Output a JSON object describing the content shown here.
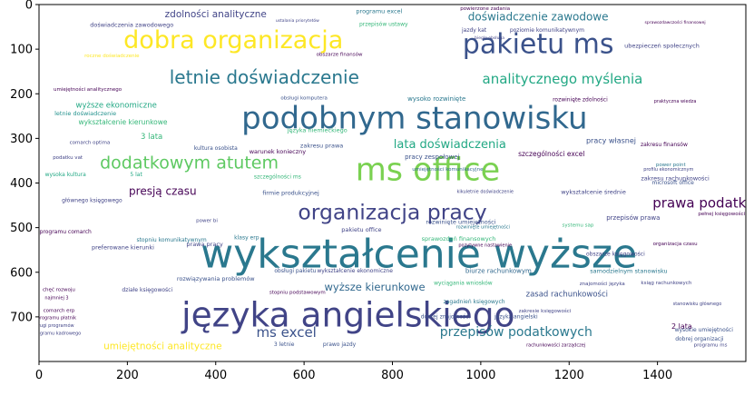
{
  "chart_data": {
    "type": "wordcloud",
    "title": "",
    "xlabel": "",
    "ylabel": "",
    "xlim": [
      0,
      1600
    ],
    "ylim": [
      800,
      0
    ],
    "x_ticks": [
      0,
      200,
      400,
      600,
      800,
      1000,
      1200,
      1400
    ],
    "y_ticks": [
      0,
      100,
      200,
      300,
      400,
      500,
      600,
      700
    ],
    "grid": false,
    "palette": [
      "#440154",
      "#3b528b",
      "#21918c",
      "#5ec962",
      "#fde725"
    ],
    "words": [
      {
        "text": "wykształcenie wyższe",
        "x": 860,
        "y": 560,
        "size": 88,
        "color": "#2a788e"
      },
      {
        "text": "języka angielskiego",
        "x": 700,
        "y": 695,
        "size": 75,
        "color": "#414487"
      },
      {
        "text": "podobnym stanowisku",
        "x": 850,
        "y": 255,
        "size": 68,
        "color": "#31688e"
      },
      {
        "text": "ms office",
        "x": 880,
        "y": 372,
        "size": 70,
        "color": "#7ad151"
      },
      {
        "text": "pakietu ms",
        "x": 1130,
        "y": 90,
        "size": 60,
        "color": "#3b528b"
      },
      {
        "text": "dobra organizacja",
        "x": 440,
        "y": 80,
        "size": 54,
        "color": "#fde725"
      },
      {
        "text": "organizacja pracy",
        "x": 800,
        "y": 465,
        "size": 47,
        "color": "#414487"
      },
      {
        "text": "letnie doświadczenie",
        "x": 510,
        "y": 163,
        "size": 40,
        "color": "#2a788e"
      },
      {
        "text": "dodatkowym atutem",
        "x": 340,
        "y": 355,
        "size": 38,
        "color": "#5ec962"
      },
      {
        "text": "analitycznego myślenia",
        "x": 1185,
        "y": 167,
        "size": 30,
        "color": "#22a884"
      },
      {
        "text": "prawa podatkowego",
        "x": 1545,
        "y": 445,
        "size": 30,
        "color": "#440154"
      },
      {
        "text": "przepisów podatkowych",
        "x": 1080,
        "y": 735,
        "size": 28,
        "color": "#2a788e"
      },
      {
        "text": "ms excel",
        "x": 560,
        "y": 735,
        "size": 30,
        "color": "#3b528b"
      },
      {
        "text": "lata doświadczenia",
        "x": 930,
        "y": 314,
        "size": 26,
        "color": "#22a884"
      },
      {
        "text": "umiejętności analityczne",
        "x": 280,
        "y": 766,
        "size": 21,
        "color": "#fde725"
      },
      {
        "text": "zdolności analityczne",
        "x": 400,
        "y": 22,
        "size": 21,
        "color": "#414487"
      },
      {
        "text": "doświadczenie zawodowe",
        "x": 1130,
        "y": 27,
        "size": 24,
        "color": "#2a788e"
      },
      {
        "text": "wyższe kierunkowe",
        "x": 760,
        "y": 633,
        "size": 23,
        "color": "#31688e"
      },
      {
        "text": "presją czasu",
        "x": 280,
        "y": 418,
        "size": 24,
        "color": "#440154"
      },
      {
        "text": "wyższe ekonomiczne",
        "x": 175,
        "y": 227,
        "size": 17,
        "color": "#22a884"
      },
      {
        "text": "wykształcenie kierunkowe",
        "x": 190,
        "y": 264,
        "size": 15,
        "color": "#35b779"
      },
      {
        "text": "pracy własnej",
        "x": 1295,
        "y": 305,
        "size": 16,
        "color": "#3b528b"
      },
      {
        "text": "szczególności excel",
        "x": 1160,
        "y": 335,
        "size": 15,
        "color": "#440154"
      },
      {
        "text": "2 lata",
        "x": 1455,
        "y": 722,
        "size": 16,
        "color": "#440154"
      },
      {
        "text": "zasad rachunkowości",
        "x": 1195,
        "y": 650,
        "size": 17,
        "color": "#3b528b"
      },
      {
        "text": "3 lata",
        "x": 255,
        "y": 297,
        "size": 17,
        "color": "#35b779"
      },
      {
        "text": "letnie doświadczenie",
        "x": 105,
        "y": 244,
        "size": 13,
        "color": "#21918c"
      },
      {
        "text": "stopniu komunikatywnym",
        "x": 300,
        "y": 528,
        "size": 12,
        "color": "#2a788e"
      },
      {
        "text": "preferowane kierunki",
        "x": 190,
        "y": 545,
        "size": 13,
        "color": "#414487"
      },
      {
        "text": "umiejętności komunikacyjne",
        "x": 925,
        "y": 370,
        "size": 11,
        "color": "#31688e"
      },
      {
        "text": "rozwiązywania problemów",
        "x": 400,
        "y": 615,
        "size": 13,
        "color": "#3b528b"
      },
      {
        "text": "biurze rachunkowym",
        "x": 1040,
        "y": 597,
        "size": 14,
        "color": "#31688e"
      },
      {
        "text": "samodzielnym stanowisku",
        "x": 1335,
        "y": 597,
        "size": 13,
        "color": "#2a788e"
      },
      {
        "text": "sprawozdań finansowych",
        "x": 950,
        "y": 525,
        "size": 13,
        "color": "#35b779"
      },
      {
        "text": "rozwinięte umiejętności",
        "x": 955,
        "y": 488,
        "size": 13,
        "color": "#3b528b"
      },
      {
        "text": "przepisów prawa",
        "x": 1345,
        "y": 478,
        "size": 14,
        "color": "#414487"
      },
      {
        "text": "zakresu prawa",
        "x": 640,
        "y": 317,
        "size": 13,
        "color": "#3b528b"
      },
      {
        "text": "warunek konieczny",
        "x": 540,
        "y": 330,
        "size": 13,
        "color": "#440154"
      },
      {
        "text": "pracy zespołowej",
        "x": 890,
        "y": 342,
        "size": 14,
        "color": "#3b528b"
      },
      {
        "text": "wysoko rozwinięte",
        "x": 900,
        "y": 212,
        "size": 14,
        "color": "#2a788e"
      },
      {
        "text": "języka niemieckiego",
        "x": 630,
        "y": 282,
        "size": 13,
        "color": "#35b779"
      },
      {
        "text": "obsługi komputera",
        "x": 600,
        "y": 211,
        "size": 11,
        "color": "#3b528b"
      },
      {
        "text": "umiejętności analitycznego",
        "x": 110,
        "y": 191,
        "size": 11,
        "color": "#440154"
      },
      {
        "text": "programu excel",
        "x": 770,
        "y": 15,
        "size": 13,
        "color": "#2a788e"
      },
      {
        "text": "przepisów ustawy",
        "x": 780,
        "y": 45,
        "size": 12,
        "color": "#35b779"
      },
      {
        "text": "doświadczenia zawodowego",
        "x": 210,
        "y": 46,
        "size": 13,
        "color": "#414487"
      },
      {
        "text": "poziomie komunikatywnym",
        "x": 1150,
        "y": 58,
        "size": 12,
        "color": "#414487"
      },
      {
        "text": "ubezpieczeń społecznych",
        "x": 1410,
        "y": 93,
        "size": 13,
        "color": "#414487"
      },
      {
        "text": "rozwinięte zdolności",
        "x": 1225,
        "y": 214,
        "size": 12,
        "color": "#440154"
      },
      {
        "text": "kultura osobista",
        "x": 400,
        "y": 323,
        "size": 12,
        "color": "#3b528b"
      },
      {
        "text": "firmie produkcyjnej",
        "x": 570,
        "y": 422,
        "size": 13,
        "color": "#3b528b"
      },
      {
        "text": "pakietu office",
        "x": 730,
        "y": 505,
        "size": 13,
        "color": "#414487"
      },
      {
        "text": "wykształcenie średnie",
        "x": 1255,
        "y": 420,
        "size": 13,
        "color": "#414487"
      },
      {
        "text": "zakresu finansów",
        "x": 1415,
        "y": 314,
        "size": 12,
        "color": "#440154"
      },
      {
        "text": "microsoft office",
        "x": 1435,
        "y": 400,
        "size": 12,
        "color": "#3b528b"
      },
      {
        "text": "wyciągania wniosków",
        "x": 960,
        "y": 625,
        "size": 12,
        "color": "#35b779"
      },
      {
        "text": "obszarze księgowości",
        "x": 1305,
        "y": 560,
        "size": 12,
        "color": "#414487"
      },
      {
        "text": "zagadnień księgowych",
        "x": 985,
        "y": 667,
        "size": 12,
        "color": "#2a788e"
      },
      {
        "text": "dobrej znajomości",
        "x": 920,
        "y": 700,
        "size": 12,
        "color": "#3b528b"
      },
      {
        "text": "języka angielski",
        "x": 1080,
        "y": 700,
        "size": 12,
        "color": "#3b528b"
      },
      {
        "text": "wysokie umiejętności",
        "x": 1505,
        "y": 730,
        "size": 12,
        "color": "#3b528b"
      },
      {
        "text": "dobrej organizacji",
        "x": 1495,
        "y": 750,
        "size": 12,
        "color": "#3b528b"
      },
      {
        "text": "obsługi pakietu",
        "x": 580,
        "y": 597,
        "size": 12,
        "color": "#3b528b"
      },
      {
        "text": "wykształcenie ekonomiczne",
        "x": 715,
        "y": 597,
        "size": 12,
        "color": "#414487"
      },
      {
        "text": "działe księgowości",
        "x": 245,
        "y": 640,
        "size": 12,
        "color": "#414487"
      },
      {
        "text": "chęć rozwoju",
        "x": 45,
        "y": 640,
        "size": 11,
        "color": "#440154"
      },
      {
        "text": "najmniej 3",
        "x": 40,
        "y": 659,
        "size": 10,
        "color": "#440154"
      },
      {
        "text": "comarch erp",
        "x": 45,
        "y": 687,
        "size": 11,
        "color": "#440154"
      },
      {
        "text": "programu płatnik",
        "x": 40,
        "y": 703,
        "size": 10,
        "color": "#440154"
      },
      {
        "text": "obsługi programów",
        "x": 30,
        "y": 721,
        "size": 10,
        "color": "#414487"
      },
      {
        "text": "programu kadrowego",
        "x": 40,
        "y": 738,
        "size": 10,
        "color": "#414487"
      },
      {
        "text": "stopniu podstawowym",
        "x": 585,
        "y": 646,
        "size": 11,
        "color": "#440154"
      },
      {
        "text": "szczególności ms",
        "x": 540,
        "y": 387,
        "size": 12,
        "color": "#35b779"
      },
      {
        "text": "wysoka kultura",
        "x": 60,
        "y": 382,
        "size": 12,
        "color": "#22a884"
      },
      {
        "text": "głównego księgowego",
        "x": 120,
        "y": 440,
        "size": 12,
        "color": "#414487"
      },
      {
        "text": "programu comarch",
        "x": 60,
        "y": 510,
        "size": 12,
        "color": "#440154"
      },
      {
        "text": "comarch optima",
        "x": 115,
        "y": 310,
        "size": 11,
        "color": "#414487"
      },
      {
        "text": "podatku vat",
        "x": 65,
        "y": 344,
        "size": 11,
        "color": "#414487"
      },
      {
        "text": "5 lat",
        "x": 220,
        "y": 382,
        "size": 12,
        "color": "#22a884"
      },
      {
        "text": "klasy erp",
        "x": 470,
        "y": 523,
        "size": 12,
        "color": "#2a788e"
      },
      {
        "text": "power bi",
        "x": 380,
        "y": 486,
        "size": 11,
        "color": "#414487"
      },
      {
        "text": "prawa pracy",
        "x": 375,
        "y": 537,
        "size": 13,
        "color": "#414487"
      },
      {
        "text": "zakresu rachunkowości",
        "x": 1440,
        "y": 390,
        "size": 13,
        "color": "#414487"
      },
      {
        "text": "pełnej księgowości",
        "x": 1545,
        "y": 470,
        "size": 11,
        "color": "#440154"
      },
      {
        "text": "organizacja czasu",
        "x": 1440,
        "y": 537,
        "size": 11,
        "color": "#440154"
      },
      {
        "text": "znajomości języka",
        "x": 1275,
        "y": 627,
        "size": 11,
        "color": "#414487"
      },
      {
        "text": "zakresie księgowości",
        "x": 1145,
        "y": 688,
        "size": 11,
        "color": "#414487"
      },
      {
        "text": "rachunkowości zarządczej",
        "x": 1170,
        "y": 764,
        "size": 10,
        "color": "#440154"
      },
      {
        "text": "prawo jazdy",
        "x": 680,
        "y": 762,
        "size": 12,
        "color": "#3b528b"
      },
      {
        "text": "3 letnie",
        "x": 555,
        "y": 762,
        "size": 12,
        "color": "#3b528b"
      },
      {
        "text": "programu ms",
        "x": 1520,
        "y": 764,
        "size": 11,
        "color": "#414487"
      },
      {
        "text": "stanowisku głównego",
        "x": 1490,
        "y": 672,
        "size": 10,
        "color": "#414487"
      },
      {
        "text": "praktyczna wiedza",
        "x": 1440,
        "y": 218,
        "size": 10,
        "color": "#440154"
      },
      {
        "text": "ustalania priorytetów",
        "x": 585,
        "y": 38,
        "size": 9,
        "color": "#414487"
      },
      {
        "text": "roczne doświadczenie",
        "x": 165,
        "y": 116,
        "size": 11,
        "color": "#fde725"
      },
      {
        "text": "sprawozdawczości finansowej",
        "x": 1440,
        "y": 42,
        "size": 9,
        "color": "#440154"
      },
      {
        "text": "kikuletnie doświadczenie",
        "x": 1010,
        "y": 420,
        "size": 10,
        "color": "#414487"
      },
      {
        "text": "power point",
        "x": 1430,
        "y": 360,
        "size": 11,
        "color": "#2a788e"
      },
      {
        "text": "profilu ekonomicznym",
        "x": 1425,
        "y": 370,
        "size": 10,
        "color": "#414487"
      },
      {
        "text": "pozytywne nastawienie",
        "x": 1010,
        "y": 540,
        "size": 10,
        "color": "#440154"
      },
      {
        "text": "systemu sap",
        "x": 1220,
        "y": 496,
        "size": 11,
        "color": "#35b779"
      },
      {
        "text": "jazdy kat",
        "x": 985,
        "y": 58,
        "size": 12,
        "color": "#414487"
      },
      {
        "text": "powierzone zadania",
        "x": 1010,
        "y": 10,
        "size": 11,
        "color": "#440154"
      },
      {
        "text": "obszarze finansów",
        "x": 680,
        "y": 113,
        "size": 11,
        "color": "#440154"
      },
      {
        "text": "biegle obsługa",
        "x": 1020,
        "y": 76,
        "size": 9,
        "color": "#414487"
      },
      {
        "text": "ksiąg rachunkowych",
        "x": 1420,
        "y": 625,
        "size": 11,
        "color": "#414487"
      },
      {
        "text": "rozwinięte umiejętności",
        "x": 1005,
        "y": 500,
        "size": 10,
        "color": "#2a788e"
      }
    ]
  }
}
